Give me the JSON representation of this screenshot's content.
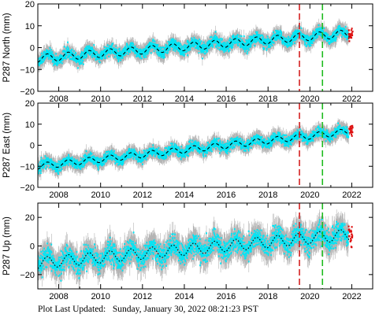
{
  "footer": {
    "label": "Plot Last Updated:",
    "timestamp": "Sunday, January 30, 2022 08:21:23 PST"
  },
  "colors": {
    "errorbar": "#b4b4b4",
    "data": "#00e5f5",
    "model": "#000000",
    "recent": "#dd1111",
    "event_red": "#d42020",
    "event_green": "#1fbb1f"
  },
  "chart_data": [
    {
      "type": "scatter",
      "ylabel": "P287 North (mm)",
      "xlim": [
        2007.0,
        2023.0
      ],
      "ylim": [
        -20,
        20
      ],
      "yticks": [
        -20,
        -10,
        0,
        10,
        20
      ],
      "xticks": [
        2008,
        2010,
        2012,
        2014,
        2016,
        2018,
        2020,
        2022
      ],
      "trend": {
        "x": [
          2007.0,
          2021.9
        ],
        "y": [
          -5.0,
          6.5
        ]
      },
      "seasonal_amp": 1.8,
      "noise_sd": 1.2,
      "error_halfwidth": 3.5,
      "events": [
        {
          "x": 2019.5,
          "color": "red"
        },
        {
          "x": 2020.6,
          "color": "green"
        }
      ],
      "recent": {
        "x_range": [
          2021.85,
          2022.05
        ],
        "y_mean": 6.0
      },
      "grid": false
    },
    {
      "type": "scatter",
      "ylabel": "P287 East (mm)",
      "xlim": [
        2007.0,
        2023.0
      ],
      "ylim": [
        -20,
        20
      ],
      "yticks": [
        -20,
        -10,
        0,
        10,
        20
      ],
      "xticks": [
        2008,
        2010,
        2012,
        2014,
        2016,
        2018,
        2020,
        2022
      ],
      "trend": {
        "x": [
          2007.0,
          2021.9
        ],
        "y": [
          -10.0,
          6.5
        ]
      },
      "seasonal_amp": 1.5,
      "noise_sd": 1.1,
      "error_halfwidth": 3.5,
      "events": [
        {
          "x": 2019.5,
          "color": "red"
        },
        {
          "x": 2020.6,
          "color": "green"
        }
      ],
      "recent": {
        "x_range": [
          2021.85,
          2022.05
        ],
        "y_mean": 7.5
      },
      "grid": false
    },
    {
      "type": "scatter",
      "ylabel": "P287 Up (mm)",
      "xlim": [
        2007.0,
        2023.0
      ],
      "ylim": [
        -30,
        30
      ],
      "yticks": [
        -20,
        0,
        20
      ],
      "xticks": [
        2008,
        2010,
        2012,
        2014,
        2016,
        2018,
        2020,
        2022
      ],
      "trend": {
        "x": [
          2007.0,
          2021.9
        ],
        "y": [
          -12.0,
          8.0
        ]
      },
      "seasonal_amp": 4.0,
      "noise_sd": 3.5,
      "error_halfwidth": 9.0,
      "events": [
        {
          "x": 2019.5,
          "color": "red"
        },
        {
          "x": 2020.6,
          "color": "green"
        }
      ],
      "recent": {
        "x_range": [
          2021.85,
          2022.05
        ],
        "y_mean": 6.0
      },
      "grid": false
    }
  ]
}
